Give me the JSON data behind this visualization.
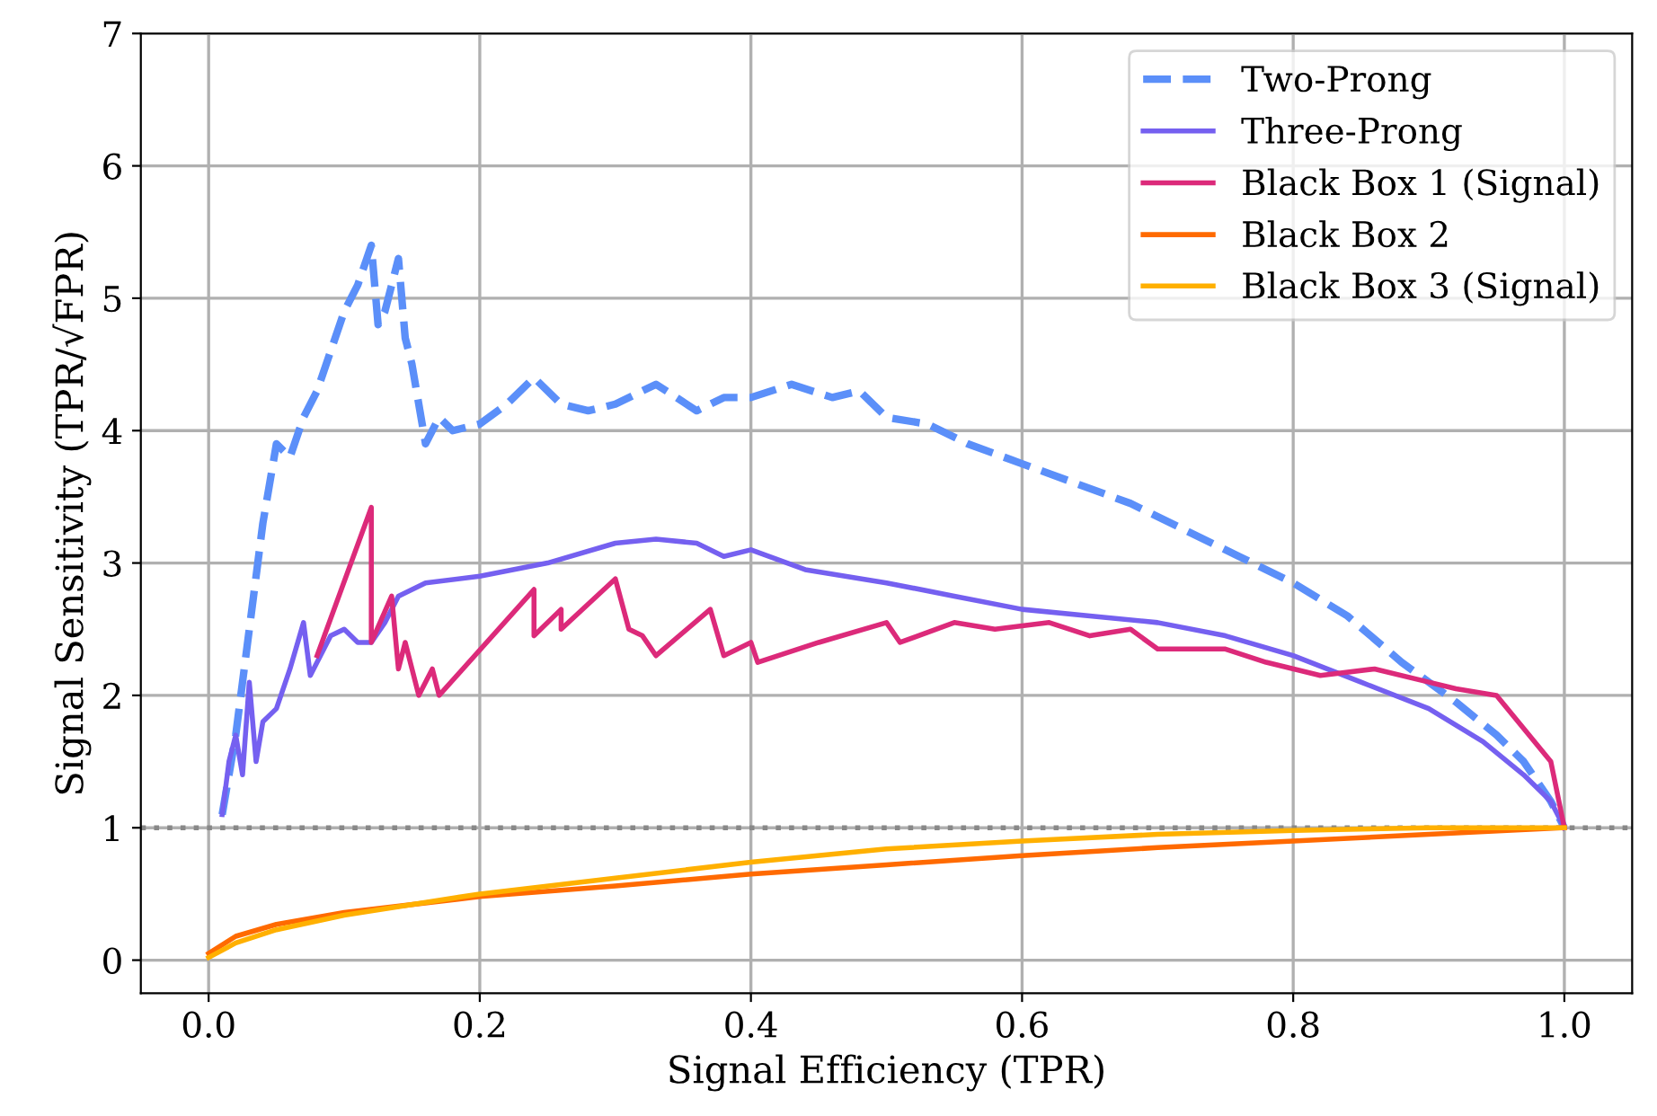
{
  "chart_data": {
    "type": "line",
    "xlabel": "Signal Efficiency (TPR)",
    "ylabel": "Signal Sensitivity (TPR/√FPR)",
    "xlim": [
      -0.05,
      1.05
    ],
    "ylim": [
      -0.25,
      7
    ],
    "xticks": [
      {
        "value": 0,
        "label": "0.0"
      },
      {
        "value": 0.2,
        "label": "0.2"
      },
      {
        "value": 0.4,
        "label": "0.4"
      },
      {
        "value": 0.6,
        "label": "0.6"
      },
      {
        "value": 0.8,
        "label": "0.8"
      },
      {
        "value": 1,
        "label": "1.0"
      }
    ],
    "yticks": [
      0,
      1,
      2,
      3,
      4,
      5,
      6,
      7
    ],
    "grid": true,
    "legend": "top right",
    "ref_lines": [
      {
        "axis": "y",
        "value": 1,
        "color": "#888888",
        "line_style": "dotted"
      }
    ],
    "series": [
      {
        "name": "Two-Prong",
        "color": "#5b8ff9",
        "line_style": "dashed",
        "x": [
          0.01,
          0.02,
          0.03,
          0.04,
          0.05,
          0.06,
          0.07,
          0.08,
          0.09,
          0.1,
          0.11,
          0.12,
          0.125,
          0.13,
          0.14,
          0.145,
          0.15,
          0.16,
          0.17,
          0.18,
          0.2,
          0.22,
          0.24,
          0.26,
          0.28,
          0.3,
          0.33,
          0.36,
          0.38,
          0.4,
          0.43,
          0.46,
          0.48,
          0.5,
          0.53,
          0.56,
          0.6,
          0.64,
          0.68,
          0.72,
          0.76,
          0.8,
          0.84,
          0.88,
          0.92,
          0.95,
          0.97,
          0.99,
          1.0
        ],
        "values": [
          1.1,
          1.7,
          2.5,
          3.3,
          3.9,
          3.8,
          4.1,
          4.3,
          4.6,
          4.9,
          5.1,
          5.4,
          4.8,
          4.9,
          5.3,
          4.7,
          4.5,
          3.9,
          4.1,
          4.0,
          4.05,
          4.2,
          4.4,
          4.2,
          4.15,
          4.2,
          4.35,
          4.15,
          4.25,
          4.25,
          4.35,
          4.25,
          4.3,
          4.1,
          4.05,
          3.9,
          3.75,
          3.6,
          3.45,
          3.25,
          3.05,
          2.85,
          2.6,
          2.25,
          1.95,
          1.7,
          1.5,
          1.2,
          1.0
        ]
      },
      {
        "name": "Three-Prong",
        "color": "#7560f0",
        "line_style": "solid",
        "x": [
          0.01,
          0.015,
          0.02,
          0.025,
          0.03,
          0.035,
          0.04,
          0.05,
          0.06,
          0.07,
          0.075,
          0.09,
          0.1,
          0.11,
          0.12,
          0.13,
          0.14,
          0.16,
          0.2,
          0.25,
          0.3,
          0.33,
          0.36,
          0.38,
          0.4,
          0.44,
          0.5,
          0.55,
          0.6,
          0.65,
          0.7,
          0.75,
          0.8,
          0.85,
          0.9,
          0.94,
          0.97,
          0.99,
          1.0
        ],
        "values": [
          1.1,
          1.5,
          1.7,
          1.4,
          2.1,
          1.5,
          1.8,
          1.9,
          2.2,
          2.55,
          2.15,
          2.45,
          2.5,
          2.4,
          2.4,
          2.55,
          2.75,
          2.85,
          2.9,
          3.0,
          3.15,
          3.18,
          3.15,
          3.05,
          3.1,
          2.95,
          2.85,
          2.75,
          2.65,
          2.6,
          2.55,
          2.45,
          2.3,
          2.1,
          1.9,
          1.65,
          1.4,
          1.2,
          1.0
        ]
      },
      {
        "name": "Black Box 1 (Signal)",
        "color": "#dc2a7a",
        "line_style": "solid",
        "x": [
          0.08,
          0.12,
          0.12,
          0.135,
          0.14,
          0.145,
          0.155,
          0.165,
          0.17,
          0.24,
          0.24,
          0.26,
          0.26,
          0.3,
          0.31,
          0.32,
          0.33,
          0.37,
          0.38,
          0.4,
          0.405,
          0.45,
          0.5,
          0.51,
          0.55,
          0.58,
          0.62,
          0.65,
          0.68,
          0.7,
          0.75,
          0.78,
          0.82,
          0.86,
          0.9,
          0.92,
          0.95,
          0.97,
          0.99,
          1.0
        ],
        "values": [
          2.3,
          3.42,
          2.4,
          2.75,
          2.2,
          2.4,
          2.0,
          2.2,
          2.0,
          2.8,
          2.45,
          2.65,
          2.5,
          2.88,
          2.5,
          2.45,
          2.3,
          2.65,
          2.3,
          2.4,
          2.25,
          2.4,
          2.55,
          2.4,
          2.55,
          2.5,
          2.55,
          2.45,
          2.5,
          2.35,
          2.35,
          2.25,
          2.15,
          2.2,
          2.1,
          2.05,
          2.0,
          1.75,
          1.5,
          1.0
        ]
      },
      {
        "name": "Black Box 2",
        "color": "#ff6a00",
        "line_style": "solid",
        "x": [
          0.0,
          0.02,
          0.05,
          0.1,
          0.2,
          0.3,
          0.4,
          0.5,
          0.6,
          0.7,
          0.8,
          0.9,
          1.0
        ],
        "values": [
          0.05,
          0.18,
          0.27,
          0.36,
          0.48,
          0.56,
          0.65,
          0.72,
          0.79,
          0.85,
          0.9,
          0.95,
          1.0
        ]
      },
      {
        "name": "Black Box 3 (Signal)",
        "color": "#ffb000",
        "line_style": "solid",
        "x": [
          0.0,
          0.02,
          0.05,
          0.1,
          0.2,
          0.3,
          0.4,
          0.5,
          0.6,
          0.7,
          0.8,
          0.9,
          1.0
        ],
        "values": [
          0.02,
          0.13,
          0.23,
          0.34,
          0.5,
          0.62,
          0.74,
          0.84,
          0.9,
          0.95,
          0.98,
          1.0,
          1.0
        ]
      }
    ]
  }
}
